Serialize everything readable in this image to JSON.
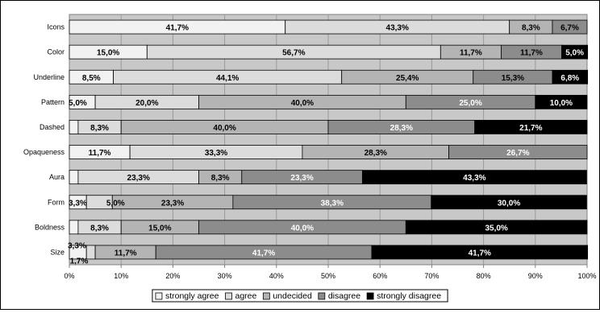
{
  "chart_data": {
    "type": "bar",
    "orientation": "horizontal",
    "stacked": true,
    "percent_stacked": true,
    "categories": [
      "Icons",
      "Color",
      "Underline",
      "Pattern",
      "Dashed",
      "Opaqueness",
      "Aura",
      "Form",
      "Boldness",
      "Size"
    ],
    "series": [
      {
        "name": "strongly agree",
        "color": "#f2f2f2",
        "values": [
          41.7,
          15.0,
          8.5,
          5.0,
          1.7,
          11.7,
          1.7,
          3.3,
          1.7,
          3.3
        ]
      },
      {
        "name": "agree",
        "color": "#dcdcdc",
        "values": [
          43.3,
          56.7,
          44.1,
          20.0,
          8.3,
          33.3,
          23.3,
          5.0,
          8.3,
          1.7
        ]
      },
      {
        "name": "undecided",
        "color": "#b4b4b4",
        "values": [
          8.3,
          11.7,
          25.4,
          40.0,
          40.0,
          28.3,
          8.3,
          23.3,
          15.0,
          11.7
        ]
      },
      {
        "name": "disagree",
        "color": "#8c8c8c",
        "values": [
          6.7,
          11.7,
          15.3,
          25.0,
          28.3,
          26.7,
          23.3,
          38.3,
          40.0,
          41.7
        ]
      },
      {
        "name": "strongly disagree",
        "color": "#000000",
        "values": [
          0.0,
          5.0,
          6.8,
          10.0,
          21.7,
          0.0,
          43.3,
          30.0,
          35.0,
          41.7
        ]
      }
    ],
    "labels": [
      [
        "41,7%",
        "43,3%",
        "8,3%",
        "6,7%",
        ""
      ],
      [
        "15,0%",
        "56,7%",
        "11,7%",
        "11,7%",
        "5,0%"
      ],
      [
        "8,5%",
        "44,1%",
        "25,4%",
        "15,3%",
        "6,8%"
      ],
      [
        "5,0%",
        "20,0%",
        "40,0%",
        "25,0%",
        "10,0%"
      ],
      [
        "",
        "8,3%",
        "40,0%",
        "28,3%",
        "21,7%"
      ],
      [
        "11,7%",
        "33,3%",
        "28,3%",
        "26,7%",
        ""
      ],
      [
        "",
        "23,3%",
        "8,3%",
        "23,3%",
        "43,3%"
      ],
      [
        "3,3%",
        "5,0%",
        "23,3%",
        "38,3%",
        "30,0%"
      ],
      [
        "",
        "8,3%",
        "15,0%",
        "40,0%",
        "35,0%"
      ],
      [
        "3,3%",
        "1,7%",
        "11,7%",
        "41,7%",
        "41,7%"
      ]
    ],
    "x_ticks": [
      "0%",
      "10%",
      "20%",
      "30%",
      "40%",
      "50%",
      "60%",
      "70%",
      "80%",
      "90%",
      "100%"
    ],
    "xlim": [
      0,
      100
    ],
    "grid": "vertical",
    "legend_position": "bottom",
    "colors": {
      "plot_background": "#c8c8c8"
    }
  }
}
